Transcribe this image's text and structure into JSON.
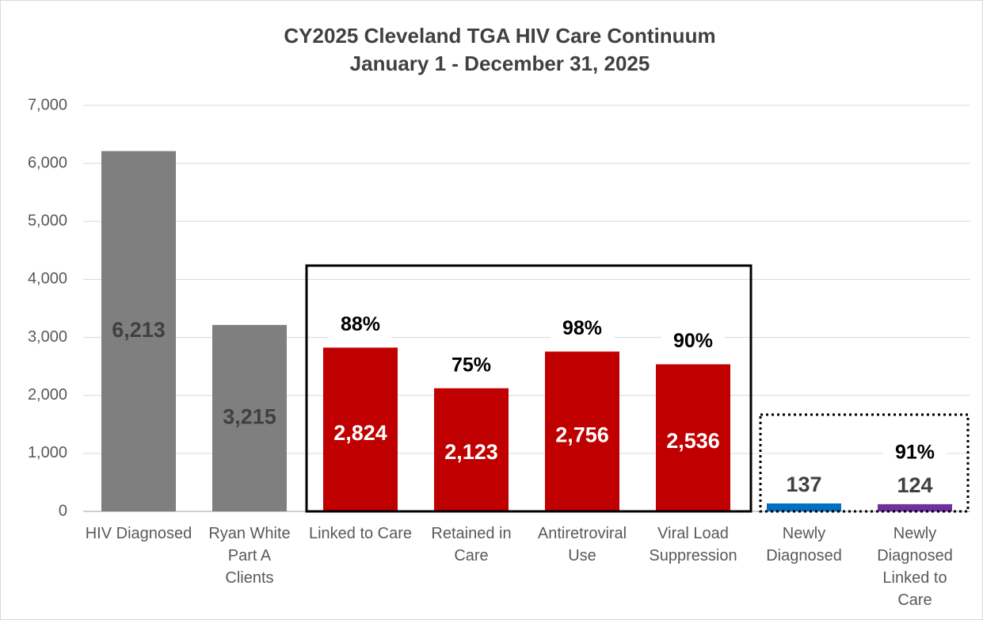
{
  "chart_data": {
    "type": "bar",
    "title": "CY2025 Cleveland TGA HIV Care Continuum",
    "subtitle": "January 1 - December 31, 2025",
    "categories": [
      "HIV Diagnosed",
      "Ryan White Part A Clients",
      "Linked to Care",
      "Retained in Care",
      "Antiretroviral Use",
      "Viral Load Suppression",
      "Newly Diagnosed",
      "Newly Diagnosed Linked to Care"
    ],
    "values": [
      6213,
      3215,
      2824,
      2123,
      2756,
      2536,
      137,
      124
    ],
    "value_labels": [
      "6,213",
      "3,215",
      "2,824",
      "2,123",
      "2,756",
      "2,536",
      "137",
      "124"
    ],
    "annotations": [
      null,
      null,
      "88%",
      "75%",
      "98%",
      "90%",
      null,
      "91%"
    ],
    "colors": [
      "#7f7f7f",
      "#7f7f7f",
      "#c00000",
      "#c00000",
      "#c00000",
      "#c00000",
      "#0070c0",
      "#7030a0"
    ],
    "ylim": [
      0,
      7000
    ],
    "yticks": [
      0,
      {
        "value": 1000,
        "label": "1,000"
      },
      {
        "value": 2000,
        "label": "2,000"
      },
      {
        "value": 3000,
        "label": "3,000"
      },
      {
        "value": 4000,
        "label": "4,000"
      },
      {
        "value": 5000,
        "label": "5,000"
      },
      {
        "value": 6000,
        "label": "6,000"
      },
      {
        "value": 7000,
        "label": "7,000"
      }
    ],
    "grid": true
  }
}
